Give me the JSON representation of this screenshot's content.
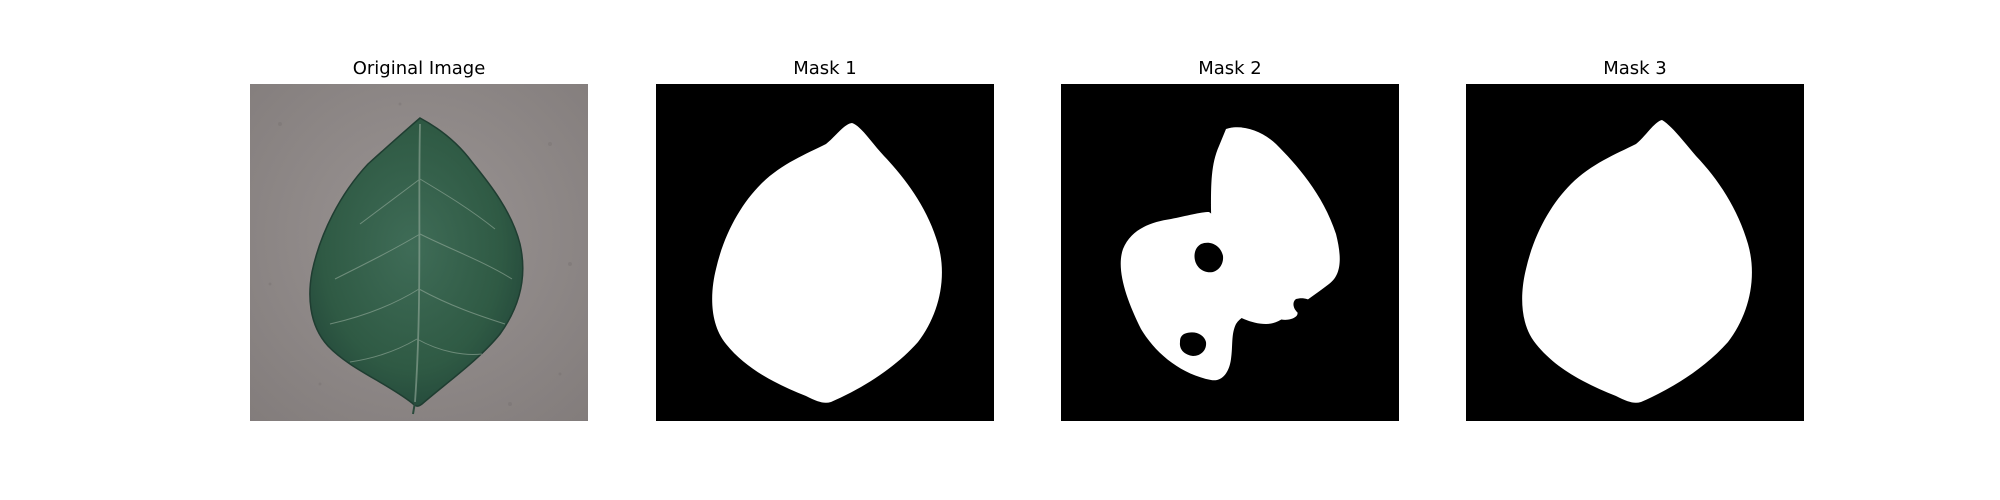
{
  "figure": {
    "background": "#ffffff",
    "panels": [
      {
        "title": "Original Image",
        "kind": "photo",
        "subject": "leaf"
      },
      {
        "title": "Mask 1",
        "kind": "binary-mask"
      },
      {
        "title": "Mask 2",
        "kind": "binary-mask"
      },
      {
        "title": "Mask 3",
        "kind": "binary-mask"
      }
    ]
  },
  "colors": {
    "mask_background": "#000000",
    "mask_foreground": "#ffffff",
    "photo_background": "#8d8786",
    "leaf_green": "#2f5a44",
    "leaf_vein": "#b9c8b6"
  }
}
